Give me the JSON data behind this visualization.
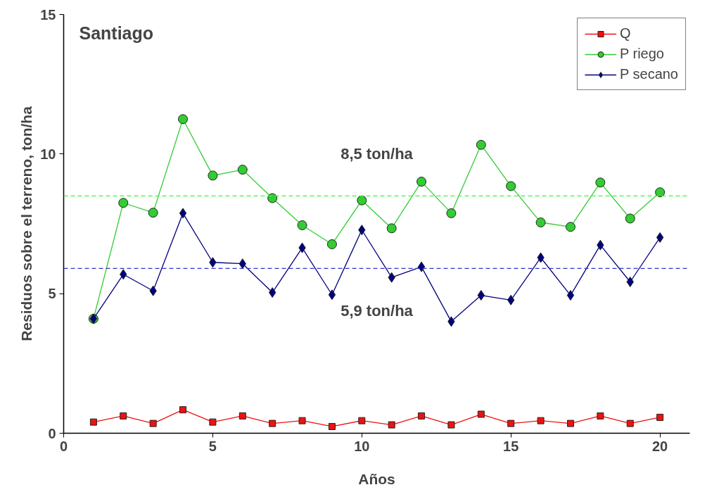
{
  "chart_data": {
    "type": "line",
    "title": "Santiago",
    "xlabel": "Años",
    "ylabel": "Residuos sobre el terreno, ton/ha",
    "x": [
      1,
      2,
      3,
      4,
      5,
      6,
      7,
      8,
      9,
      10,
      11,
      12,
      13,
      14,
      15,
      16,
      17,
      18,
      19,
      20
    ],
    "xlim": [
      0,
      21
    ],
    "xticks": [
      0,
      5,
      10,
      15,
      20
    ],
    "ylim": [
      0,
      15
    ],
    "yticks": [
      0,
      5,
      10,
      15
    ],
    "grid": false,
    "legend": "top right",
    "series": [
      {
        "name": "Q",
        "color": "#ee1111",
        "marker": "square",
        "values": [
          0.4,
          0.62,
          0.35,
          0.84,
          0.4,
          0.62,
          0.35,
          0.45,
          0.24,
          0.45,
          0.3,
          0.62,
          0.3,
          0.68,
          0.35,
          0.45,
          0.35,
          0.62,
          0.35,
          0.57
        ]
      },
      {
        "name": "P riego",
        "color": "#33cc33",
        "marker": "circle",
        "values": [
          4.1,
          8.25,
          7.9,
          11.25,
          9.23,
          9.44,
          8.42,
          7.45,
          6.77,
          8.34,
          7.34,
          9.01,
          7.88,
          10.33,
          8.85,
          7.55,
          7.39,
          8.98,
          7.69,
          8.63
        ]
      },
      {
        "name": "P secano",
        "color": "#000080",
        "marker": "diamond",
        "values": [
          4.1,
          5.69,
          5.1,
          7.88,
          6.12,
          6.07,
          5.04,
          6.64,
          4.96,
          7.28,
          5.58,
          5.96,
          4.0,
          4.94,
          4.77,
          6.29,
          4.94,
          6.74,
          5.42,
          7.01
        ]
      }
    ],
    "ref_lines": [
      {
        "axis": "y",
        "value": 8.5,
        "label": "8,5 ton/ha",
        "color": "#33ff33",
        "line_style": "dashed"
      },
      {
        "axis": "y",
        "value": 5.9,
        "label": "5,9 ton/ha",
        "color": "#3333cc",
        "line_style": "dashed"
      }
    ]
  }
}
